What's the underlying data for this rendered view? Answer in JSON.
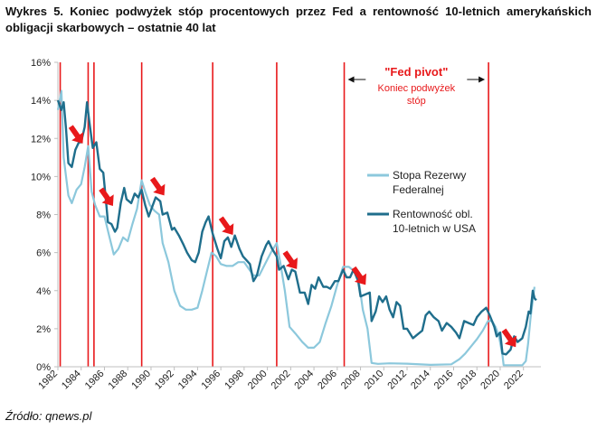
{
  "caption": "Wykres 5. Koniec podwyżek stóp procentowych przez Fed a rentowność 10-letnich amerykańskich obligacji skarbowych – ostatnie 40 lat",
  "source": "Źródło: qnews.pl",
  "chart_data": {
    "type": "line",
    "title": "",
    "xlabel": "",
    "ylabel": "",
    "xlim": [
      1982,
      2023.5
    ],
    "ylim": [
      0,
      16
    ],
    "y_ticks": [
      "0%",
      "2%",
      "4%",
      "6%",
      "8%",
      "10%",
      "12%",
      "14%",
      "16%"
    ],
    "x_ticks": [
      "1982",
      "1984",
      "1986",
      "1988",
      "1990",
      "1992",
      "1994",
      "1996",
      "1998",
      "2000",
      "2002",
      "2004",
      "2006",
      "2008",
      "2010",
      "2012",
      "2014",
      "2016",
      "2018",
      "2020",
      "2022"
    ],
    "grid": false,
    "legend_position": "right",
    "series": [
      {
        "name": "Stopa Rezerwy Federalnej",
        "color": "#8cc8dc",
        "points": [
          [
            1982.0,
            13.5
          ],
          [
            1982.3,
            14.5
          ],
          [
            1982.5,
            11.0
          ],
          [
            1982.7,
            10.0
          ],
          [
            1982.9,
            9.0
          ],
          [
            1983.2,
            8.6
          ],
          [
            1983.6,
            9.3
          ],
          [
            1984.0,
            9.6
          ],
          [
            1984.3,
            10.5
          ],
          [
            1984.6,
            11.6
          ],
          [
            1984.9,
            9.2
          ],
          [
            1985.2,
            8.5
          ],
          [
            1985.6,
            7.9
          ],
          [
            1986.0,
            7.9
          ],
          [
            1986.4,
            6.9
          ],
          [
            1986.8,
            5.9
          ],
          [
            1987.2,
            6.2
          ],
          [
            1987.6,
            6.8
          ],
          [
            1988.0,
            6.6
          ],
          [
            1988.4,
            7.5
          ],
          [
            1988.8,
            8.3
          ],
          [
            1989.2,
            9.8
          ],
          [
            1989.5,
            9.2
          ],
          [
            1989.9,
            8.5
          ],
          [
            1990.3,
            8.2
          ],
          [
            1990.7,
            8.0
          ],
          [
            1991.0,
            6.5
          ],
          [
            1991.5,
            5.5
          ],
          [
            1992.0,
            4.0
          ],
          [
            1992.5,
            3.2
          ],
          [
            1993.0,
            3.0
          ],
          [
            1993.5,
            3.0
          ],
          [
            1994.0,
            3.1
          ],
          [
            1994.4,
            4.0
          ],
          [
            1994.8,
            5.0
          ],
          [
            1995.2,
            6.0
          ],
          [
            1995.6,
            5.8
          ],
          [
            1996.0,
            5.4
          ],
          [
            1996.5,
            5.3
          ],
          [
            1997.0,
            5.3
          ],
          [
            1997.5,
            5.5
          ],
          [
            1998.0,
            5.5
          ],
          [
            1998.8,
            4.8
          ],
          [
            1999.3,
            4.8
          ],
          [
            1999.8,
            5.4
          ],
          [
            2000.3,
            6.0
          ],
          [
            2000.8,
            6.5
          ],
          [
            2001.1,
            5.5
          ],
          [
            2001.5,
            4.0
          ],
          [
            2001.9,
            2.1
          ],
          [
            2002.4,
            1.75
          ],
          [
            2003.0,
            1.3
          ],
          [
            2003.5,
            1.0
          ],
          [
            2004.0,
            1.0
          ],
          [
            2004.5,
            1.3
          ],
          [
            2005.0,
            2.3
          ],
          [
            2005.5,
            3.2
          ],
          [
            2006.0,
            4.3
          ],
          [
            2006.5,
            5.25
          ],
          [
            2007.0,
            5.25
          ],
          [
            2007.5,
            5.0
          ],
          [
            2007.9,
            4.3
          ],
          [
            2008.2,
            3.0
          ],
          [
            2008.6,
            2.0
          ],
          [
            2008.95,
            0.2
          ],
          [
            2009.5,
            0.15
          ],
          [
            2010.5,
            0.18
          ],
          [
            2012.0,
            0.16
          ],
          [
            2014.0,
            0.1
          ],
          [
            2015.8,
            0.13
          ],
          [
            2016.5,
            0.4
          ],
          [
            2017.0,
            0.7
          ],
          [
            2017.6,
            1.15
          ],
          [
            2018.0,
            1.45
          ],
          [
            2018.5,
            1.9
          ],
          [
            2018.95,
            2.4
          ],
          [
            2019.3,
            2.4
          ],
          [
            2019.6,
            2.1
          ],
          [
            2019.9,
            1.6
          ],
          [
            2020.2,
            0.6
          ],
          [
            2020.3,
            0.08
          ],
          [
            2021.0,
            0.08
          ],
          [
            2021.9,
            0.08
          ],
          [
            2022.2,
            0.3
          ],
          [
            2022.4,
            1.2
          ],
          [
            2022.6,
            2.5
          ],
          [
            2022.8,
            3.5
          ],
          [
            2022.95,
            4.2
          ]
        ]
      },
      {
        "name": "Rentowność obl. 10-letnich w USA",
        "color": "#1f6e8c",
        "points": [
          [
            1982.0,
            14.0
          ],
          [
            1982.3,
            13.5
          ],
          [
            1982.5,
            13.9
          ],
          [
            1982.7,
            12.5
          ],
          [
            1982.9,
            10.7
          ],
          [
            1983.2,
            10.5
          ],
          [
            1983.5,
            11.4
          ],
          [
            1983.8,
            11.8
          ],
          [
            1984.0,
            11.8
          ],
          [
            1984.3,
            12.6
          ],
          [
            1984.5,
            13.9
          ],
          [
            1984.7,
            12.9
          ],
          [
            1985.0,
            11.5
          ],
          [
            1985.3,
            11.8
          ],
          [
            1985.6,
            10.4
          ],
          [
            1985.9,
            10.2
          ],
          [
            1986.1,
            8.9
          ],
          [
            1986.3,
            7.6
          ],
          [
            1986.6,
            7.5
          ],
          [
            1986.9,
            7.1
          ],
          [
            1987.1,
            7.3
          ],
          [
            1987.4,
            8.6
          ],
          [
            1987.7,
            9.4
          ],
          [
            1987.9,
            8.8
          ],
          [
            1988.3,
            8.6
          ],
          [
            1988.6,
            9.1
          ],
          [
            1988.9,
            8.9
          ],
          [
            1989.2,
            9.3
          ],
          [
            1989.5,
            8.5
          ],
          [
            1989.8,
            7.9
          ],
          [
            1990.1,
            8.4
          ],
          [
            1990.4,
            8.9
          ],
          [
            1990.8,
            8.7
          ],
          [
            1991.0,
            8.0
          ],
          [
            1991.4,
            8.1
          ],
          [
            1991.8,
            7.2
          ],
          [
            1992.0,
            7.3
          ],
          [
            1992.4,
            6.9
          ],
          [
            1992.8,
            6.4
          ],
          [
            1993.1,
            6.0
          ],
          [
            1993.5,
            5.6
          ],
          [
            1993.8,
            5.5
          ],
          [
            1994.1,
            6.0
          ],
          [
            1994.4,
            7.1
          ],
          [
            1994.7,
            7.6
          ],
          [
            1994.95,
            7.9
          ],
          [
            1995.3,
            7.0
          ],
          [
            1995.7,
            6.2
          ],
          [
            1996.0,
            5.7
          ],
          [
            1996.3,
            6.6
          ],
          [
            1996.6,
            6.8
          ],
          [
            1996.9,
            6.3
          ],
          [
            1997.2,
            6.9
          ],
          [
            1997.6,
            6.2
          ],
          [
            1997.9,
            5.8
          ],
          [
            1998.2,
            5.6
          ],
          [
            1998.5,
            5.4
          ],
          [
            1998.8,
            4.5
          ],
          [
            1999.1,
            4.8
          ],
          [
            1999.5,
            5.8
          ],
          [
            1999.9,
            6.4
          ],
          [
            2000.1,
            6.6
          ],
          [
            2000.4,
            6.2
          ],
          [
            2000.8,
            5.8
          ],
          [
            2001.0,
            5.1
          ],
          [
            2001.4,
            5.3
          ],
          [
            2001.8,
            4.6
          ],
          [
            2002.1,
            5.1
          ],
          [
            2002.4,
            5.0
          ],
          [
            2002.8,
            3.9
          ],
          [
            2003.2,
            3.9
          ],
          [
            2003.5,
            3.3
          ],
          [
            2003.8,
            4.3
          ],
          [
            2004.1,
            4.1
          ],
          [
            2004.4,
            4.7
          ],
          [
            2004.8,
            4.2
          ],
          [
            2005.1,
            4.2
          ],
          [
            2005.4,
            4.1
          ],
          [
            2005.8,
            4.5
          ],
          [
            2006.1,
            4.5
          ],
          [
            2006.5,
            5.1
          ],
          [
            2006.8,
            4.7
          ],
          [
            2007.1,
            4.7
          ],
          [
            2007.4,
            5.1
          ],
          [
            2007.8,
            4.5
          ],
          [
            2008.0,
            3.7
          ],
          [
            2008.4,
            3.8
          ],
          [
            2008.8,
            3.9
          ],
          [
            2008.95,
            2.4
          ],
          [
            2009.3,
            2.9
          ],
          [
            2009.6,
            3.7
          ],
          [
            2009.9,
            3.4
          ],
          [
            2010.2,
            3.7
          ],
          [
            2010.5,
            3.0
          ],
          [
            2010.8,
            2.6
          ],
          [
            2011.1,
            3.4
          ],
          [
            2011.4,
            3.2
          ],
          [
            2011.7,
            2.0
          ],
          [
            2012.0,
            2.0
          ],
          [
            2012.5,
            1.5
          ],
          [
            2012.9,
            1.7
          ],
          [
            2013.3,
            1.9
          ],
          [
            2013.6,
            2.7
          ],
          [
            2013.9,
            2.9
          ],
          [
            2014.3,
            2.6
          ],
          [
            2014.7,
            2.4
          ],
          [
            2015.0,
            1.9
          ],
          [
            2015.4,
            2.3
          ],
          [
            2015.8,
            2.1
          ],
          [
            2016.2,
            1.8
          ],
          [
            2016.5,
            1.5
          ],
          [
            2016.9,
            2.4
          ],
          [
            2017.3,
            2.3
          ],
          [
            2017.7,
            2.2
          ],
          [
            2018.0,
            2.6
          ],
          [
            2018.4,
            2.9
          ],
          [
            2018.8,
            3.1
          ],
          [
            2019.1,
            2.7
          ],
          [
            2019.5,
            2.1
          ],
          [
            2019.7,
            1.6
          ],
          [
            2020.0,
            1.8
          ],
          [
            2020.2,
            0.7
          ],
          [
            2020.5,
            0.65
          ],
          [
            2020.9,
            0.9
          ],
          [
            2021.2,
            1.6
          ],
          [
            2021.5,
            1.3
          ],
          [
            2021.9,
            1.5
          ],
          [
            2022.2,
            2.1
          ],
          [
            2022.45,
            2.9
          ],
          [
            2022.6,
            2.8
          ],
          [
            2022.8,
            4.0
          ],
          [
            2022.95,
            3.6
          ],
          [
            2023.1,
            3.5
          ]
        ]
      }
    ],
    "fed_pivot_years": [
      1982.2,
      1984.6,
      1985.1,
      1989.2,
      1995.3,
      2000.8,
      2006.6,
      2019.0
    ],
    "arrow_years": [
      1983.6,
      1986.2,
      1990.6,
      1996.5,
      2002.0,
      2007.9,
      2020.8
    ],
    "annotation": {
      "title": "\"Fed pivot\"",
      "subtitle_line1": "Koniec podwyżek",
      "subtitle_line2": "stóp",
      "span_years": [
        2006.6,
        2019.0
      ]
    },
    "colors": {
      "pivot_line": "#e8191b",
      "arrow": "#e8191b",
      "fed_funds": "#8cc8dc",
      "treasury": "#1f6e8c",
      "axis": "#bfbfbf",
      "text": "#222222"
    }
  }
}
